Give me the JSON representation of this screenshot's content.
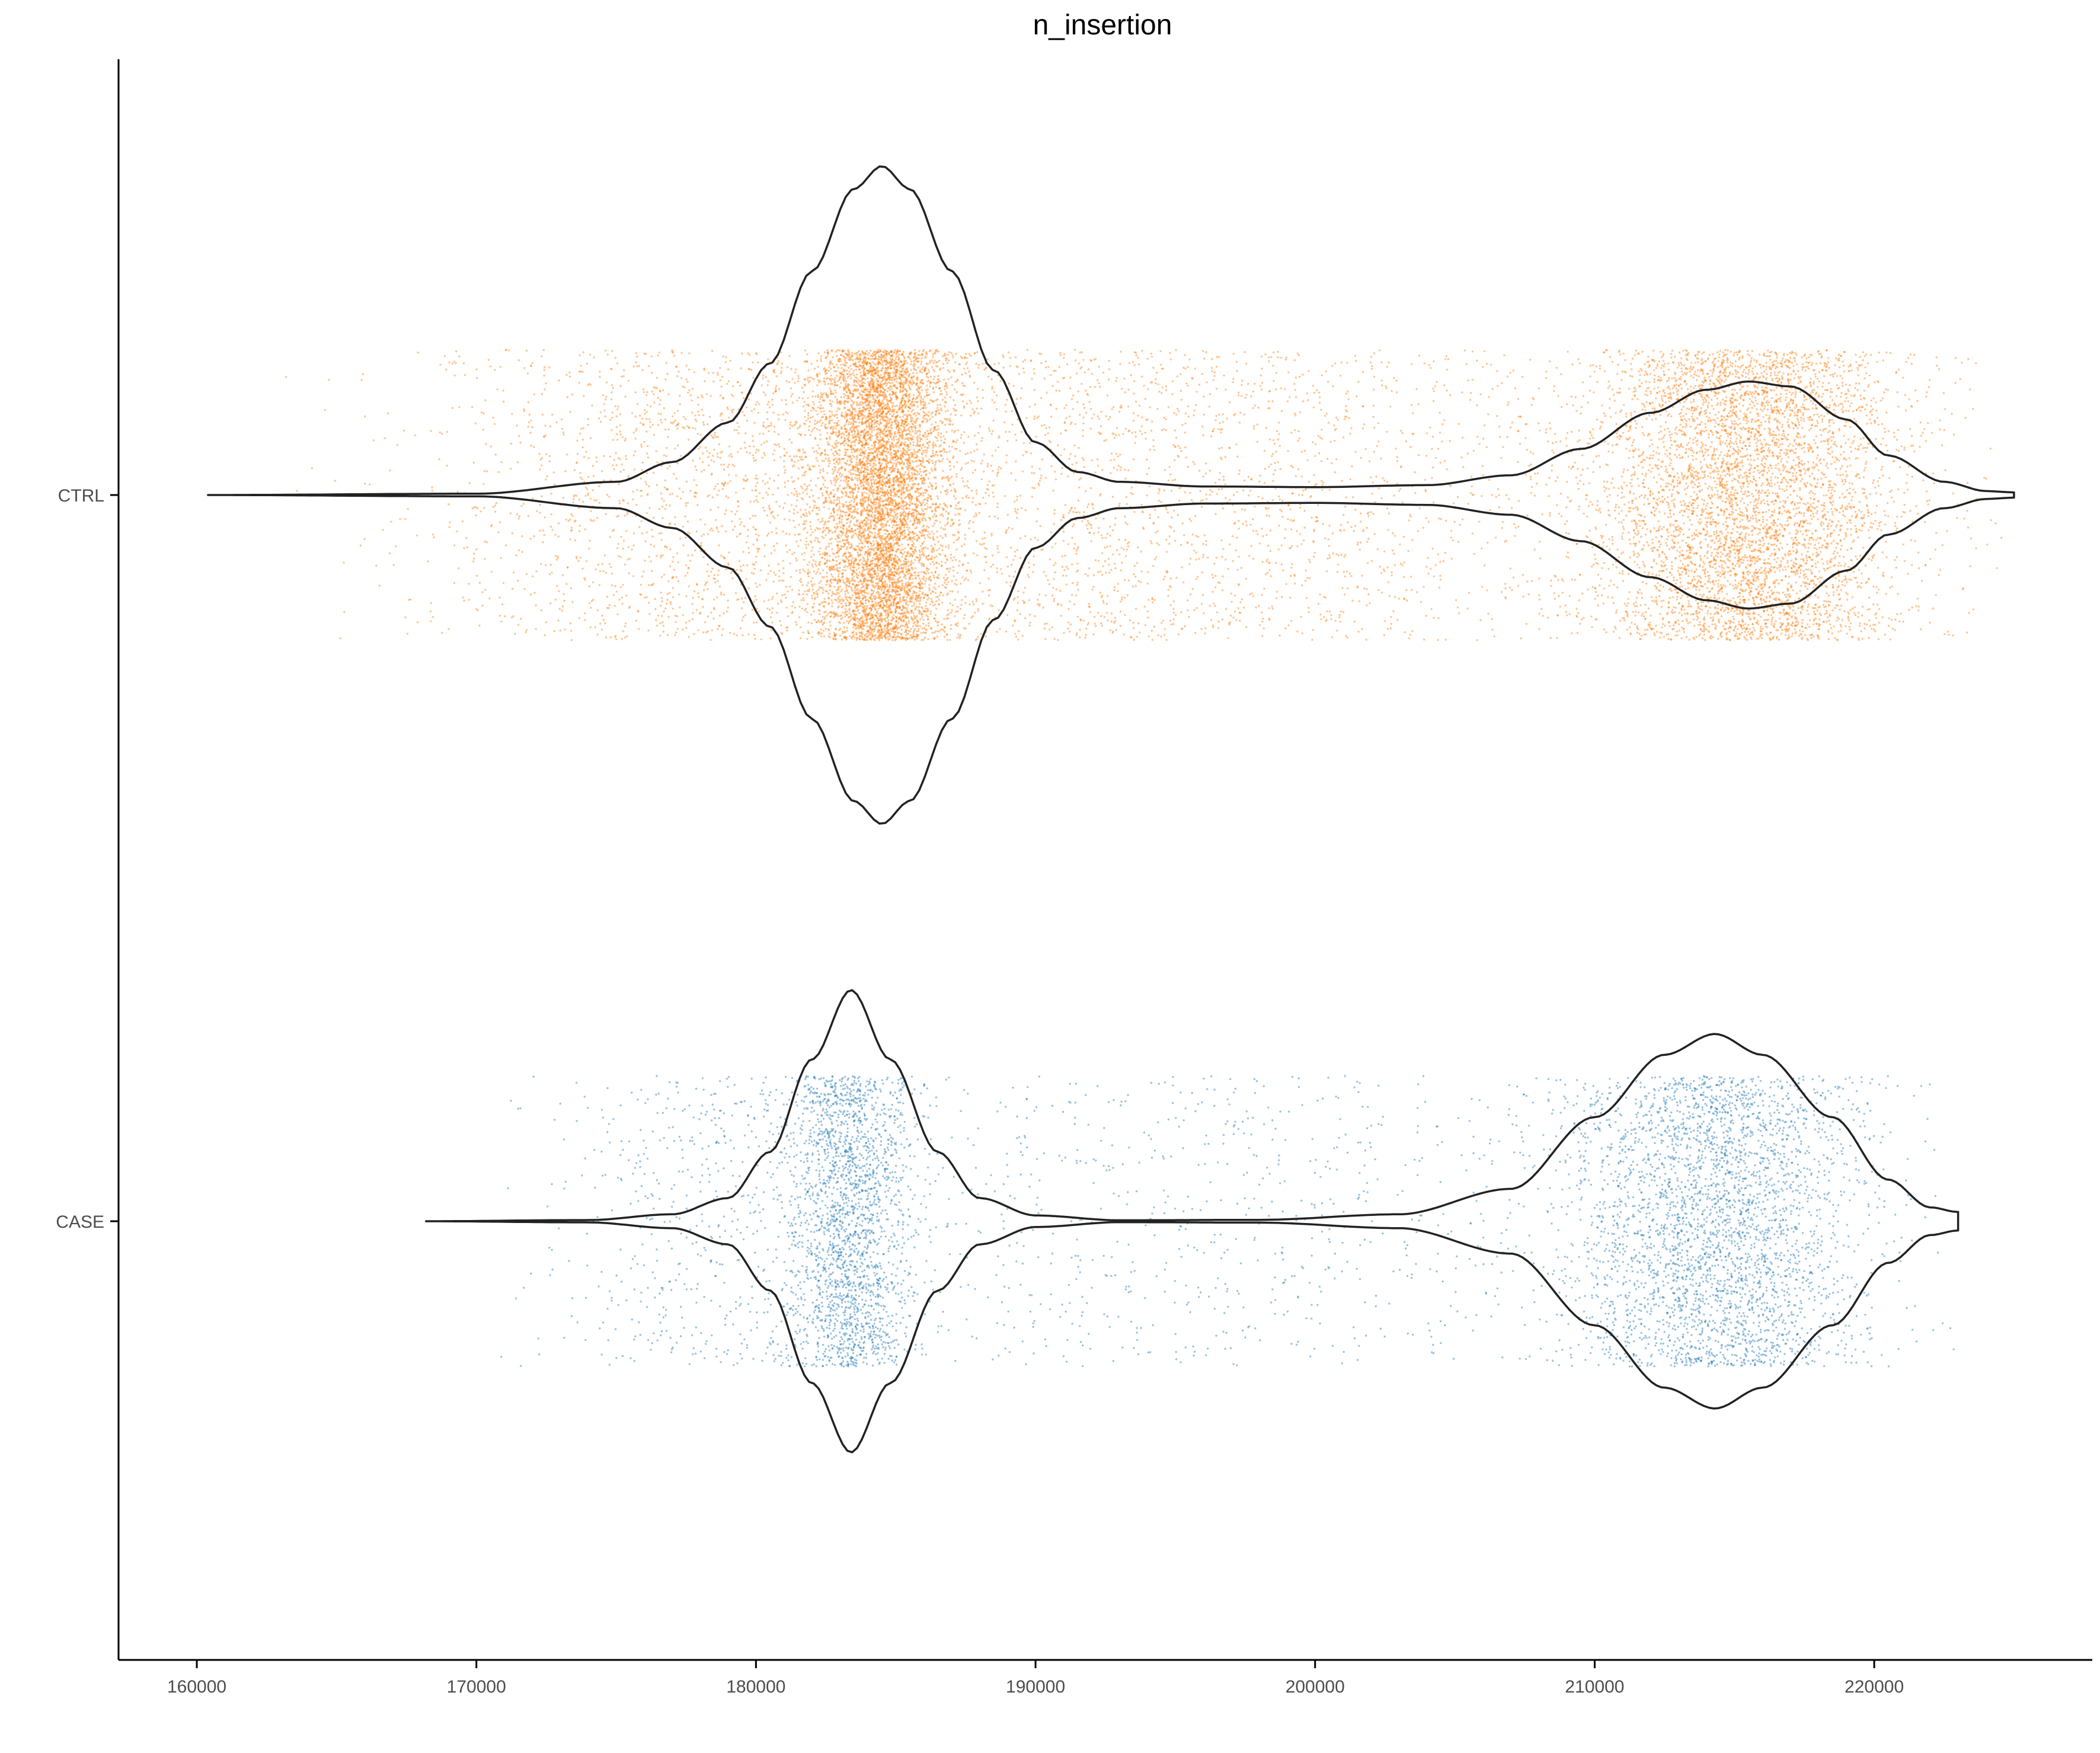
{
  "chart_data": {
    "type": "violin",
    "orientation": "horizontal",
    "title": "n_insertion",
    "xlabel": "",
    "ylabel": "",
    "xlim": [
      157200,
      227800
    ],
    "x_ticks": [
      160000,
      170000,
      180000,
      190000,
      200000,
      210000,
      220000
    ],
    "x_tick_labels": [
      "160000",
      "170000",
      "180000",
      "190000",
      "200000",
      "210000",
      "220000"
    ],
    "categories": [
      "CTRL",
      "CASE"
    ],
    "grid": false,
    "legend": "none",
    "series": [
      {
        "name": "CTRL",
        "color": "#ff7f0e",
        "range": [
          160400,
          225000
        ],
        "n_points": 16000,
        "modes": [
          {
            "center": 184500,
            "sd": 1200,
            "weight": 0.38
          },
          {
            "center": 215500,
            "sd": 2800,
            "weight": 0.34
          },
          {
            "center": 193000,
            "sd": 9000,
            "weight": 0.18
          },
          {
            "center": 178000,
            "sd": 5000,
            "weight": 0.1
          }
        ],
        "density_profile": [
          [
            160400,
            0.0
          ],
          [
            170000,
            0.004
          ],
          [
            175000,
            0.04
          ],
          [
            177000,
            0.1
          ],
          [
            179000,
            0.22
          ],
          [
            180500,
            0.4
          ],
          [
            182000,
            0.68
          ],
          [
            183500,
            0.93
          ],
          [
            184500,
            1.0
          ],
          [
            185500,
            0.93
          ],
          [
            187000,
            0.68
          ],
          [
            188500,
            0.38
          ],
          [
            190000,
            0.16
          ],
          [
            191500,
            0.07
          ],
          [
            193000,
            0.04
          ],
          [
            196000,
            0.026
          ],
          [
            200000,
            0.024
          ],
          [
            204000,
            0.03
          ],
          [
            207000,
            0.06
          ],
          [
            209500,
            0.14
          ],
          [
            212000,
            0.25
          ],
          [
            214000,
            0.32
          ],
          [
            215500,
            0.345
          ],
          [
            217000,
            0.33
          ],
          [
            219000,
            0.23
          ],
          [
            220500,
            0.12
          ],
          [
            222500,
            0.04
          ],
          [
            224000,
            0.012
          ],
          [
            225000,
            0.008
          ]
        ]
      },
      {
        "name": "CASE",
        "color": "#1f77b4",
        "range": [
          168200,
          223000
        ],
        "n_points": 7000,
        "modes": [
          {
            "center": 183400,
            "sd": 1100,
            "weight": 0.3
          },
          {
            "center": 214300,
            "sd": 2700,
            "weight": 0.5
          },
          {
            "center": 195000,
            "sd": 9000,
            "weight": 0.12
          },
          {
            "center": 178500,
            "sd": 3000,
            "weight": 0.08
          }
        ],
        "density_profile": [
          [
            168200,
            0.0
          ],
          [
            174000,
            0.005
          ],
          [
            177000,
            0.03
          ],
          [
            179000,
            0.1
          ],
          [
            180500,
            0.3
          ],
          [
            182000,
            0.7
          ],
          [
            183400,
            1.0
          ],
          [
            184800,
            0.7
          ],
          [
            186500,
            0.3
          ],
          [
            188000,
            0.1
          ],
          [
            190000,
            0.025
          ],
          [
            193000,
            0.004
          ],
          [
            198000,
            0.006
          ],
          [
            203000,
            0.03
          ],
          [
            207000,
            0.14
          ],
          [
            210000,
            0.45
          ],
          [
            212500,
            0.72
          ],
          [
            214300,
            0.81
          ],
          [
            216000,
            0.72
          ],
          [
            218500,
            0.45
          ],
          [
            220500,
            0.18
          ],
          [
            222000,
            0.06
          ],
          [
            223000,
            0.04
          ]
        ]
      }
    ]
  }
}
